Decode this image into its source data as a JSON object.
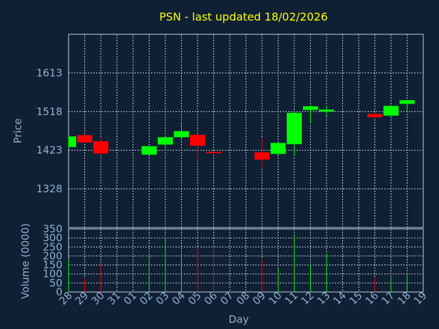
{
  "chart_data": [
    {
      "type": "candlestick",
      "title": "PSN - last updated 18/02/2026",
      "ylabel": "Price",
      "xlabel": "Day",
      "ylim": [
        1233,
        1708
      ],
      "yticks": [
        1328,
        1423,
        1518,
        1613
      ],
      "categories": [
        "28",
        "29",
        "30",
        "31",
        "01",
        "02",
        "03",
        "04",
        "05",
        "06",
        "07",
        "08",
        "09",
        "10",
        "11",
        "12",
        "13",
        "14",
        "15",
        "16",
        "17",
        "18",
        "19"
      ],
      "up_color": "#00ff00",
      "down_color": "#ff0000",
      "grid": true,
      "candles": [
        {
          "day": "28",
          "open": 1431,
          "high": 1457,
          "low": 1428,
          "close": 1457
        },
        {
          "day": "29",
          "open": 1460,
          "high": 1461,
          "low": 1440,
          "close": 1442
        },
        {
          "day": "30",
          "open": 1445,
          "high": 1452,
          "low": 1410,
          "close": 1415
        },
        {
          "day": "02",
          "open": 1412,
          "high": 1433,
          "low": 1410,
          "close": 1433
        },
        {
          "day": "03",
          "open": 1437,
          "high": 1455,
          "low": 1428,
          "close": 1455
        },
        {
          "day": "04",
          "open": 1455,
          "high": 1490,
          "low": 1452,
          "close": 1470
        },
        {
          "day": "05",
          "open": 1461,
          "high": 1461,
          "low": 1397,
          "close": 1434
        },
        {
          "day": "06",
          "open": 1419,
          "high": 1421,
          "low": 1416,
          "close": 1418
        },
        {
          "day": "09",
          "open": 1418,
          "high": 1455,
          "low": 1377,
          "close": 1400
        },
        {
          "day": "10",
          "open": 1414,
          "high": 1441,
          "low": 1412,
          "close": 1441
        },
        {
          "day": "11",
          "open": 1438,
          "high": 1520,
          "low": 1408,
          "close": 1515
        },
        {
          "day": "12",
          "open": 1522,
          "high": 1534,
          "low": 1490,
          "close": 1531
        },
        {
          "day": "13",
          "open": 1518,
          "high": 1533,
          "low": 1505,
          "close": 1523
        },
        {
          "day": "16",
          "open": 1512,
          "high": 1515,
          "low": 1502,
          "close": 1504
        },
        {
          "day": "17",
          "open": 1508,
          "high": 1534,
          "low": 1507,
          "close": 1532
        },
        {
          "day": "18",
          "open": 1537,
          "high": 1546,
          "low": 1517,
          "close": 1546
        }
      ]
    },
    {
      "type": "bar",
      "ylabel": "Volume (0000)",
      "xlabel": "Day",
      "ylim": [
        0,
        350
      ],
      "yticks": [
        0,
        50,
        100,
        150,
        200,
        250,
        300,
        350
      ],
      "categories": [
        "28",
        "29",
        "30",
        "31",
        "01",
        "02",
        "03",
        "04",
        "05",
        "06",
        "07",
        "08",
        "09",
        "10",
        "11",
        "12",
        "13",
        "14",
        "15",
        "16",
        "17",
        "18",
        "19"
      ],
      "bars": [
        {
          "day": "28",
          "value": 180,
          "direction": "up"
        },
        {
          "day": "29",
          "value": 75,
          "direction": "down"
        },
        {
          "day": "30",
          "value": 150,
          "direction": "down"
        },
        {
          "day": "02",
          "value": 188,
          "direction": "up"
        },
        {
          "day": "03",
          "value": 305,
          "direction": "up"
        },
        {
          "day": "04",
          "value": 210,
          "direction": "up"
        },
        {
          "day": "05",
          "value": 248,
          "direction": "down"
        },
        {
          "day": "06",
          "value": 255,
          "direction": "down"
        },
        {
          "day": "09",
          "value": 185,
          "direction": "down"
        },
        {
          "day": "10",
          "value": 130,
          "direction": "up"
        },
        {
          "day": "11",
          "value": 322,
          "direction": "up"
        },
        {
          "day": "12",
          "value": 148,
          "direction": "up"
        },
        {
          "day": "13",
          "value": 215,
          "direction": "up"
        },
        {
          "day": "16",
          "value": 80,
          "direction": "down"
        },
        {
          "day": "17",
          "value": 80,
          "direction": "up"
        },
        {
          "day": "18",
          "value": 95,
          "direction": "up"
        }
      ]
    }
  ]
}
